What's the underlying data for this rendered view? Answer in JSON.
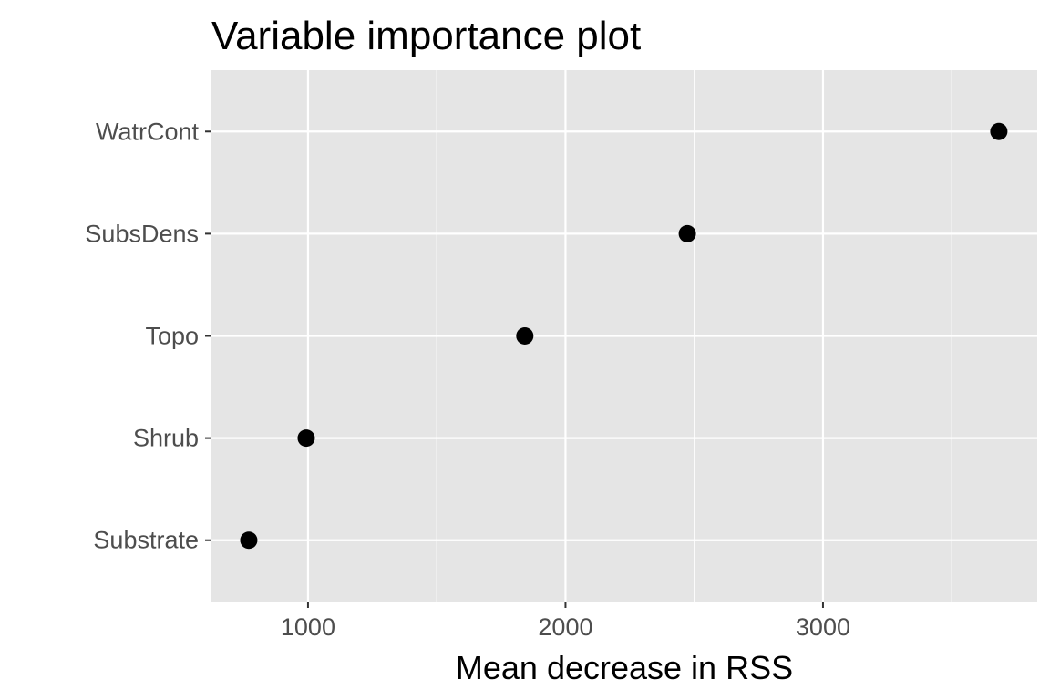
{
  "chart_data": {
    "type": "scatter",
    "title": "Variable importance plot",
    "xlabel": "Mean decrease in RSS",
    "ylabel": "",
    "categories": [
      "Substrate",
      "Shrub",
      "Topo",
      "SubsDens",
      "WatrCont"
    ],
    "values": [
      770,
      993,
      1842,
      2473,
      3683
    ],
    "xlim": [
      625,
      3832
    ],
    "xticks": [
      1000,
      2000,
      3000
    ],
    "xtick_labels": [
      "1000",
      "2000",
      "3000"
    ],
    "grid": true,
    "colors": {
      "panel": "#e5e5e5",
      "grid": "#ffffff",
      "point": "#000000"
    }
  }
}
